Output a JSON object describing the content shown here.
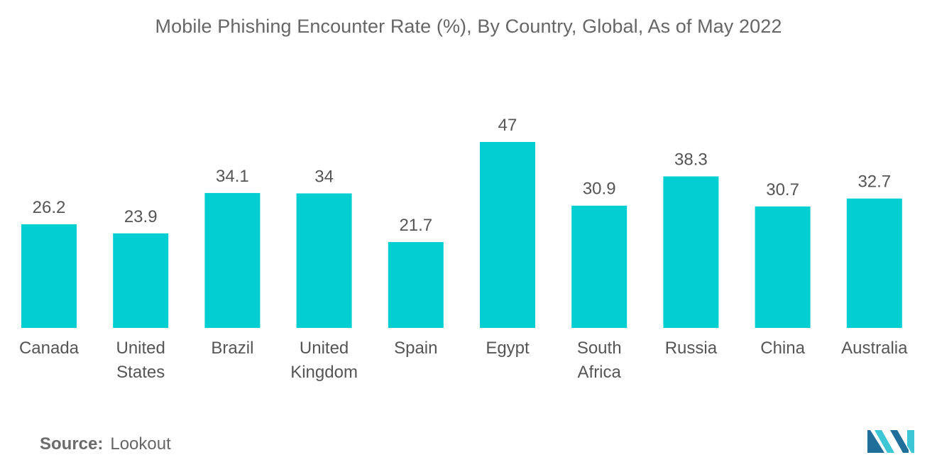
{
  "chart_data": {
    "type": "bar",
    "title": "Mobile Phishing Encounter Rate (%), By Country, Global, As of May 2022",
    "categories": [
      [
        "Canada"
      ],
      [
        "United",
        "States"
      ],
      [
        "Brazil"
      ],
      [
        "United",
        "Kingdom"
      ],
      [
        "Spain"
      ],
      [
        "Egypt"
      ],
      [
        "South",
        "Africa"
      ],
      [
        "Russia"
      ],
      [
        "China"
      ],
      [
        "Australia"
      ]
    ],
    "values": [
      26.2,
      23.9,
      34.1,
      34,
      21.7,
      47,
      30.9,
      38.3,
      30.7,
      32.7
    ],
    "value_labels": [
      "26.2",
      "23.9",
      "34.1",
      "34",
      "21.7",
      "47",
      "30.9",
      "38.3",
      "30.7",
      "32.7"
    ],
    "ylim": [
      0,
      47
    ],
    "bar_color": "#00CED1",
    "grid": false,
    "legend": "none"
  },
  "source": {
    "label": "Source:",
    "value": "Lookout"
  },
  "logo": {
    "icon": "mordor-intelligence-logo-icon",
    "colors": [
      "#1f6f9a",
      "#3cc6d6"
    ]
  }
}
